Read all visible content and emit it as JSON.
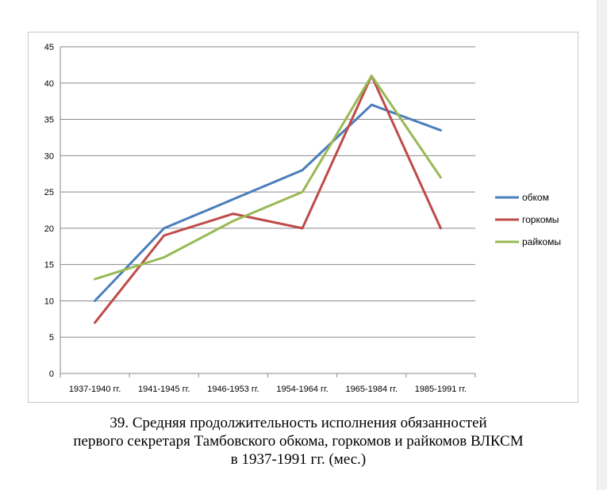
{
  "chart_data": {
    "type": "line",
    "categories": [
      "1937-1940 гг.",
      "1941-1945 гг.",
      "1946-1953 гг.",
      "1954-1964 гг.",
      "1965-1984 гг.",
      "1985-1991 гг."
    ],
    "series": [
      {
        "name": "обком",
        "color": "#4a7ebb",
        "values": [
          10,
          20,
          24,
          28,
          37,
          33.5
        ]
      },
      {
        "name": "горкомы",
        "color": "#be4b48",
        "values": [
          7,
          19,
          22,
          20,
          41,
          20
        ]
      },
      {
        "name": "райкомы",
        "color": "#98b954",
        "values": [
          13,
          16,
          21,
          25,
          41,
          27
        ]
      }
    ],
    "ylim": [
      0,
      45
    ],
    "yticks": [
      0,
      5,
      10,
      15,
      20,
      25,
      30,
      35,
      40,
      45
    ],
    "grid": true,
    "legend_position": "right"
  },
  "caption": {
    "line1": "39. Средняя продолжительность исполнения обязанностей",
    "line2": "первого секретаря Тамбовского обкома, горкомов и райкомов ВЛКСМ",
    "line3": "в 1937-1991 гг. (мес.)"
  }
}
